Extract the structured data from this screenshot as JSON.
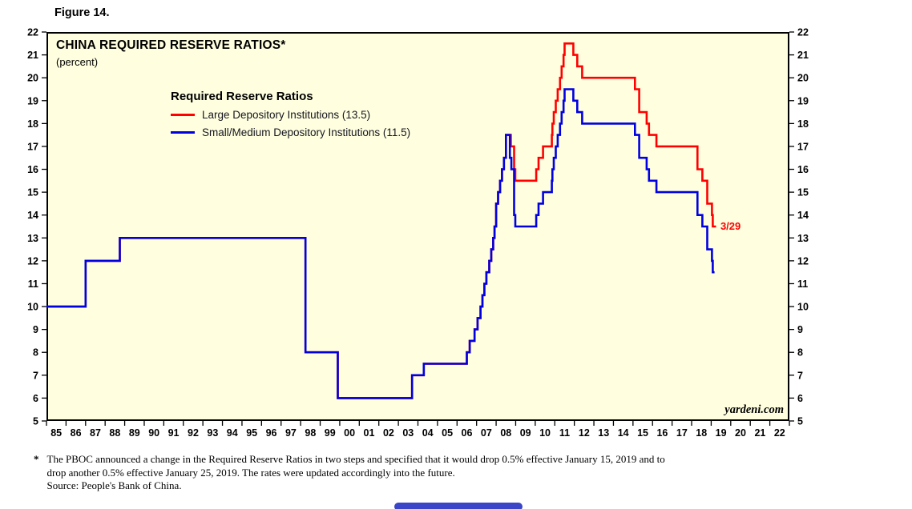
{
  "figure_label": "Figure 14.",
  "chart": {
    "colors": {
      "background": "#FFFFE0",
      "border": "#000000",
      "large_line": "#FF0000",
      "small_line": "#0000E0",
      "bottom_bar": "#3A45C8"
    }
  },
  "footnote": {
    "marker": "*",
    "line1": "The PBOC announced a change in the Required Reserve Ratios in two steps and specified that it would drop 0.5% effective January 15, 2019 and to",
    "line2": "drop another 0.5% effective January 25, 2019. The rates were updated accordingly into the future.",
    "line3": "Source: People's Bank of China."
  },
  "chart_data": {
    "type": "line",
    "step": true,
    "title": "CHINA REQUIRED RESERVE RATIOS*",
    "subtitle": "(percent)",
    "xlabel": "",
    "ylabel": "percent",
    "xlim": [
      1985,
      2023
    ],
    "ylim": [
      5,
      22
    ],
    "grid": false,
    "legend": {
      "title": "Required Reserve Ratios",
      "position": "inside-top-left"
    },
    "watermark": "yardeni.com",
    "y_ticks": [
      5,
      6,
      7,
      8,
      9,
      10,
      11,
      12,
      13,
      14,
      15,
      16,
      17,
      18,
      19,
      20,
      21,
      22
    ],
    "x_tick_labels": [
      "85",
      "86",
      "87",
      "88",
      "89",
      "90",
      "91",
      "92",
      "93",
      "94",
      "95",
      "96",
      "97",
      "98",
      "99",
      "00",
      "01",
      "02",
      "03",
      "04",
      "05",
      "06",
      "07",
      "08",
      "09",
      "10",
      "11",
      "12",
      "13",
      "14",
      "15",
      "16",
      "17",
      "18",
      "19",
      "20",
      "21",
      "22"
    ],
    "series": [
      {
        "name": "Large Depository Institutions (13.5)",
        "color": "#FF0000",
        "points": [
          [
            1985.0,
            10
          ],
          [
            1987.0,
            12
          ],
          [
            1988.75,
            13
          ],
          [
            1998.25,
            8
          ],
          [
            1999.9,
            6
          ],
          [
            2003.7,
            7
          ],
          [
            2004.3,
            7.5
          ],
          [
            2006.5,
            8
          ],
          [
            2006.65,
            8.5
          ],
          [
            2006.9,
            9
          ],
          [
            2007.05,
            9.5
          ],
          [
            2007.2,
            10
          ],
          [
            2007.3,
            10.5
          ],
          [
            2007.4,
            11
          ],
          [
            2007.5,
            11.5
          ],
          [
            2007.65,
            12
          ],
          [
            2007.75,
            12.5
          ],
          [
            2007.85,
            13
          ],
          [
            2007.92,
            13.5
          ],
          [
            2008.0,
            14.5
          ],
          [
            2008.1,
            15
          ],
          [
            2008.2,
            15.5
          ],
          [
            2008.3,
            16
          ],
          [
            2008.4,
            16.5
          ],
          [
            2008.5,
            17.5
          ],
          [
            2008.75,
            17
          ],
          [
            2008.92,
            16
          ],
          [
            2008.98,
            15.5
          ],
          [
            2010.05,
            16
          ],
          [
            2010.17,
            16.5
          ],
          [
            2010.4,
            17
          ],
          [
            2010.85,
            17.5
          ],
          [
            2010.88,
            18
          ],
          [
            2010.95,
            18.5
          ],
          [
            2011.05,
            19
          ],
          [
            2011.15,
            19.5
          ],
          [
            2011.27,
            20
          ],
          [
            2011.35,
            20.5
          ],
          [
            2011.45,
            21
          ],
          [
            2011.5,
            21.5
          ],
          [
            2011.95,
            21
          ],
          [
            2012.15,
            20.5
          ],
          [
            2012.4,
            20
          ],
          [
            2015.1,
            19.5
          ],
          [
            2015.32,
            18.5
          ],
          [
            2015.7,
            18
          ],
          [
            2015.82,
            17.5
          ],
          [
            2016.2,
            17
          ],
          [
            2018.3,
            16
          ],
          [
            2018.55,
            15.5
          ],
          [
            2018.8,
            14.5
          ],
          [
            2019.04,
            14
          ],
          [
            2019.08,
            13.5
          ],
          [
            2019.25,
            13.5
          ]
        ]
      },
      {
        "name": "Small/Medium Depository Institutions (11.5)",
        "color": "#0000E0",
        "points": [
          [
            1985.0,
            10
          ],
          [
            1987.0,
            12
          ],
          [
            1988.75,
            13
          ],
          [
            1998.25,
            8
          ],
          [
            1999.9,
            6
          ],
          [
            2003.7,
            7
          ],
          [
            2004.3,
            7.5
          ],
          [
            2006.5,
            8
          ],
          [
            2006.65,
            8.5
          ],
          [
            2006.9,
            9
          ],
          [
            2007.05,
            9.5
          ],
          [
            2007.2,
            10
          ],
          [
            2007.3,
            10.5
          ],
          [
            2007.4,
            11
          ],
          [
            2007.5,
            11.5
          ],
          [
            2007.65,
            12
          ],
          [
            2007.75,
            12.5
          ],
          [
            2007.85,
            13
          ],
          [
            2007.92,
            13.5
          ],
          [
            2008.0,
            14.5
          ],
          [
            2008.1,
            15
          ],
          [
            2008.2,
            15.5
          ],
          [
            2008.3,
            16
          ],
          [
            2008.4,
            16.5
          ],
          [
            2008.5,
            17.5
          ],
          [
            2008.7,
            16.5
          ],
          [
            2008.78,
            16
          ],
          [
            2008.92,
            14
          ],
          [
            2008.98,
            13.5
          ],
          [
            2010.05,
            14
          ],
          [
            2010.17,
            14.5
          ],
          [
            2010.4,
            15
          ],
          [
            2010.85,
            15.5
          ],
          [
            2010.88,
            16
          ],
          [
            2010.95,
            16.5
          ],
          [
            2011.05,
            17
          ],
          [
            2011.15,
            17.5
          ],
          [
            2011.27,
            18
          ],
          [
            2011.35,
            18.5
          ],
          [
            2011.45,
            19
          ],
          [
            2011.5,
            19.5
          ],
          [
            2011.95,
            19
          ],
          [
            2012.15,
            18.5
          ],
          [
            2012.4,
            18
          ],
          [
            2015.1,
            17.5
          ],
          [
            2015.32,
            16.5
          ],
          [
            2015.7,
            16
          ],
          [
            2015.82,
            15.5
          ],
          [
            2016.2,
            15
          ],
          [
            2018.3,
            14
          ],
          [
            2018.55,
            13.5
          ],
          [
            2018.8,
            12.5
          ],
          [
            2019.04,
            12
          ],
          [
            2019.08,
            11.5
          ],
          [
            2019.17,
            11.5
          ]
        ]
      }
    ],
    "annotations": [
      {
        "text": "3/29",
        "x": 2019.35,
        "y": 13.5,
        "color": "#FF0000"
      }
    ]
  }
}
